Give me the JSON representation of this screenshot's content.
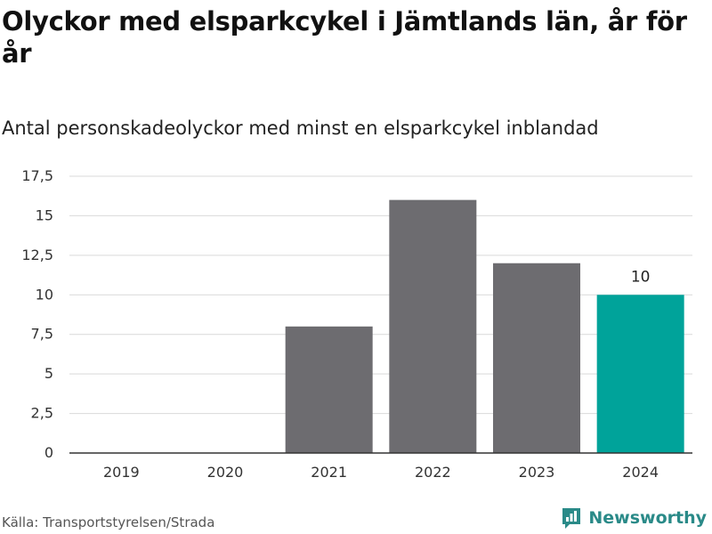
{
  "header": {
    "title": "Olyckor med elsparkcykel i Jämtlands län, år för år",
    "subtitle": "Antal personskadeolyckor med minst en elsparkcykel inblandad"
  },
  "footer": {
    "source": "Källa: Transportstyrelsen/Strada",
    "brand": "Newsworthy",
    "brand_icon": "bar-chart-logo-icon"
  },
  "colors": {
    "bar": "#6d6c70",
    "highlight": "#00a39a",
    "grid": "#d9d9d9",
    "axis": "#333333",
    "brand": "#2a8a88"
  },
  "chart_data": {
    "type": "bar",
    "categories": [
      "2019",
      "2020",
      "2021",
      "2022",
      "2023",
      "2024"
    ],
    "values": [
      0,
      0,
      8,
      16,
      12,
      10
    ],
    "highlight_index": 5,
    "data_labels": [
      {
        "index": 5,
        "text": "10"
      }
    ],
    "ylim": [
      0,
      17.5
    ],
    "yticks": [
      "0",
      "2,5",
      "5",
      "7,5",
      "10",
      "12,5",
      "15",
      "17,5"
    ],
    "ytick_values": [
      0,
      2.5,
      5,
      7.5,
      10,
      12.5,
      15,
      17.5
    ],
    "grid": true,
    "xlabel": "",
    "ylabel": ""
  }
}
